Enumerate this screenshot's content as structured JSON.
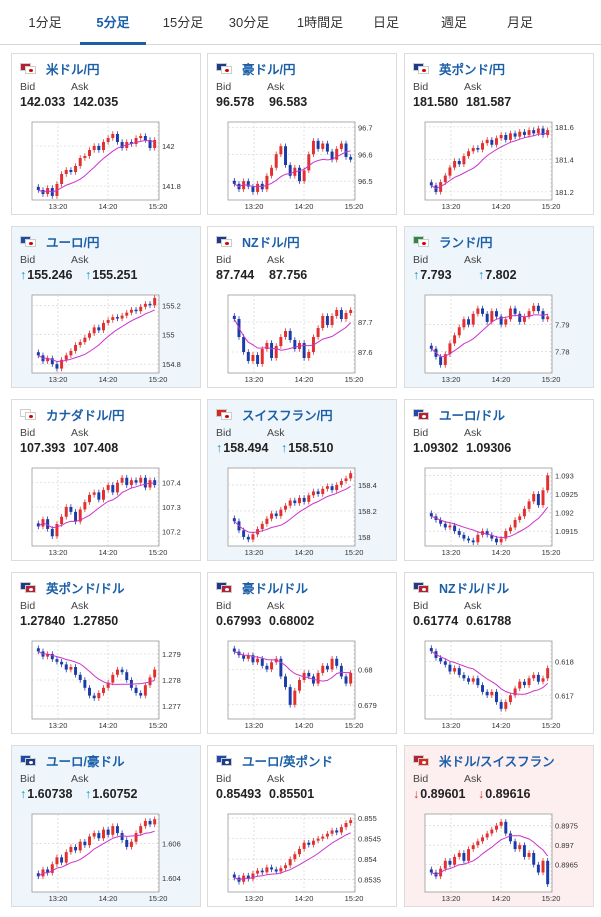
{
  "tabs": [
    {
      "label": "1分足",
      "active": false
    },
    {
      "label": "5分足",
      "active": true
    },
    {
      "label": "15分足",
      "active": false
    },
    {
      "label": "30分足",
      "active": false
    },
    {
      "label": "1時間足",
      "active": false
    },
    {
      "label": "日足",
      "active": false
    },
    {
      "label": "週足",
      "active": false
    },
    {
      "label": "月足",
      "active": false
    }
  ],
  "colors": {
    "accent": "#1a5fa8",
    "up_candle": "#e03030",
    "down_candle": "#1a3ca8",
    "ma_line": "#cc33cc",
    "arrow_up": "#1a8fd0",
    "arrow_down": "#e03030"
  },
  "labels": {
    "bid": "Bid",
    "ask": "Ask"
  },
  "pairs": [
    {
      "name": "米ドル/円",
      "flags": [
        "us",
        "jp"
      ],
      "state": "normal",
      "bid": "142.033",
      "ask": "142.035",
      "bid_dir": "",
      "ask_dir": "",
      "yticks": [
        "142",
        "141.8"
      ]
    },
    {
      "name": "豪ドル/円",
      "flags": [
        "au",
        "jp"
      ],
      "state": "normal",
      "bid": "96.578",
      "ask": "96.583",
      "bid_dir": "",
      "ask_dir": "",
      "yticks": [
        "96.7",
        "96.6",
        "96.5"
      ]
    },
    {
      "name": "英ポンド/円",
      "flags": [
        "gb",
        "jp"
      ],
      "state": "normal",
      "bid": "181.580",
      "ask": "181.587",
      "bid_dir": "",
      "ask_dir": "",
      "yticks": [
        "181.6",
        "181.4",
        "181.2"
      ]
    },
    {
      "name": "ユーロ/円",
      "flags": [
        "eu",
        "jp"
      ],
      "state": "up",
      "bid": "155.246",
      "ask": "155.251",
      "bid_dir": "↑",
      "ask_dir": "↑",
      "yticks": [
        "155.2",
        "155",
        "154.8"
      ]
    },
    {
      "name": "NZドル/円",
      "flags": [
        "nz",
        "jp"
      ],
      "state": "normal",
      "bid": "87.744",
      "ask": "87.756",
      "bid_dir": "",
      "ask_dir": "",
      "yticks": [
        "87.7",
        "87.6"
      ]
    },
    {
      "name": "ランド/円",
      "flags": [
        "za",
        "jp"
      ],
      "state": "up",
      "bid": "7.793",
      "ask": "7.802",
      "bid_dir": "↑",
      "ask_dir": "↑",
      "yticks": [
        "7.79",
        "7.78"
      ]
    },
    {
      "name": "カナダドル/円",
      "flags": [
        "ca",
        "jp"
      ],
      "state": "normal",
      "bid": "107.393",
      "ask": "107.408",
      "bid_dir": "",
      "ask_dir": "",
      "yticks": [
        "107.4",
        "107.3",
        "107.2"
      ]
    },
    {
      "name": "スイスフラン/円",
      "flags": [
        "ch",
        "jp"
      ],
      "state": "up",
      "bid": "158.494",
      "ask": "158.510",
      "bid_dir": "↑",
      "ask_dir": "↑",
      "yticks": [
        "158.4",
        "158.2",
        "158"
      ]
    },
    {
      "name": "ユーロ/ドル",
      "flags": [
        "eu",
        "us"
      ],
      "state": "normal",
      "bid": "1.09302",
      "ask": "1.09306",
      "bid_dir": "",
      "ask_dir": "",
      "yticks": [
        "1.093",
        "1.0925",
        "1.092",
        "1.0915"
      ]
    },
    {
      "name": "英ポンド/ドル",
      "flags": [
        "gb",
        "us"
      ],
      "state": "normal",
      "bid": "1.27840",
      "ask": "1.27850",
      "bid_dir": "",
      "ask_dir": "",
      "yticks": [
        "1.279",
        "1.278",
        "1.277"
      ]
    },
    {
      "name": "豪ドル/ドル",
      "flags": [
        "au",
        "us"
      ],
      "state": "normal",
      "bid": "0.67993",
      "ask": "0.68002",
      "bid_dir": "",
      "ask_dir": "",
      "yticks": [
        "0.68",
        "0.679"
      ]
    },
    {
      "name": "NZドル/ドル",
      "flags": [
        "nz",
        "us"
      ],
      "state": "normal",
      "bid": "0.61774",
      "ask": "0.61788",
      "bid_dir": "",
      "ask_dir": "",
      "yticks": [
        "0.618",
        "0.617"
      ]
    },
    {
      "name": "ユーロ/豪ドル",
      "flags": [
        "eu",
        "au"
      ],
      "state": "up",
      "bid": "1.60738",
      "ask": "1.60752",
      "bid_dir": "↑",
      "ask_dir": "↑",
      "yticks": [
        "1.606",
        "1.604"
      ]
    },
    {
      "name": "ユーロ/英ポンド",
      "flags": [
        "eu",
        "gb"
      ],
      "state": "normal",
      "bid": "0.85493",
      "ask": "0.85501",
      "bid_dir": "",
      "ask_dir": "",
      "yticks": [
        "0.855",
        "0.8545",
        "0.854",
        "0.8535"
      ]
    },
    {
      "name": "米ドル/スイスフラン",
      "flags": [
        "us",
        "ch"
      ],
      "state": "down",
      "bid": "0.89601",
      "ask": "0.89616",
      "bid_dir": "↓",
      "ask_dir": "↓",
      "yticks": [
        "0.8975",
        "0.897",
        "0.8965"
      ]
    }
  ],
  "chart_data": [
    {
      "type": "candlestick",
      "pair": "米ドル/円",
      "x_ticks": [
        "13:20",
        "14:20",
        "15:20"
      ],
      "y_ticks": [
        142,
        141.8
      ],
      "ylim": [
        141.73,
        142.12
      ],
      "close": [
        141.78,
        141.76,
        141.79,
        141.75,
        141.81,
        141.86,
        141.88,
        141.87,
        141.9,
        141.94,
        141.95,
        141.98,
        142.0,
        141.98,
        142.02,
        142.04,
        142.06,
        142.02,
        141.99,
        142.02,
        142.01,
        142.04,
        142.05,
        142.03,
        141.99,
        142.03
      ]
    },
    {
      "type": "candlestick",
      "pair": "豪ドル/円",
      "x_ticks": [
        "13:20",
        "14:20",
        "15:20"
      ],
      "y_ticks": [
        96.7,
        96.6,
        96.5
      ],
      "ylim": [
        96.43,
        96.72
      ],
      "close": [
        96.49,
        96.47,
        96.5,
        96.48,
        96.46,
        96.49,
        96.47,
        96.52,
        96.55,
        96.6,
        96.63,
        96.56,
        96.52,
        96.55,
        96.5,
        96.54,
        96.6,
        96.65,
        96.62,
        96.64,
        96.61,
        96.58,
        96.62,
        96.64,
        96.59,
        96.58
      ]
    },
    {
      "type": "candlestick",
      "pair": "英ポンド/円",
      "x_ticks": [
        "13:20",
        "14:20",
        "15:20"
      ],
      "y_ticks": [
        181.6,
        181.4,
        181.2
      ],
      "ylim": [
        181.15,
        181.63
      ],
      "close": [
        181.24,
        181.2,
        181.26,
        181.3,
        181.35,
        181.39,
        181.37,
        181.42,
        181.45,
        181.47,
        181.46,
        181.5,
        181.52,
        181.49,
        181.53,
        181.55,
        181.52,
        181.56,
        181.54,
        181.57,
        181.55,
        181.58,
        181.56,
        181.59,
        181.55,
        181.58
      ]
    },
    {
      "type": "candlestick",
      "pair": "ユーロ/円",
      "x_ticks": [
        "13:20",
        "14:20",
        "15:20"
      ],
      "y_ticks": [
        155.2,
        155,
        154.8
      ],
      "ylim": [
        154.74,
        155.27
      ],
      "close": [
        154.86,
        154.82,
        154.84,
        154.8,
        154.77,
        154.83,
        154.86,
        154.89,
        154.93,
        154.95,
        154.98,
        155.01,
        155.05,
        155.03,
        155.08,
        155.1,
        155.12,
        155.11,
        155.13,
        155.15,
        155.17,
        155.16,
        155.19,
        155.21,
        155.2,
        155.25
      ]
    },
    {
      "type": "candlestick",
      "pair": "NZドル/円",
      "x_ticks": [
        "13:20",
        "14:20",
        "15:20"
      ],
      "y_ticks": [
        87.7,
        87.6
      ],
      "ylim": [
        87.53,
        87.79
      ],
      "close": [
        87.71,
        87.65,
        87.6,
        87.57,
        87.59,
        87.56,
        87.61,
        87.63,
        87.58,
        87.62,
        87.65,
        87.67,
        87.64,
        87.61,
        87.63,
        87.58,
        87.6,
        87.65,
        87.68,
        87.72,
        87.69,
        87.72,
        87.74,
        87.71,
        87.73,
        87.74
      ]
    },
    {
      "type": "candlestick",
      "pair": "ランド/円",
      "x_ticks": [
        "13:20",
        "14:20",
        "15:20"
      ],
      "y_ticks": [
        7.79,
        7.78
      ],
      "ylim": [
        7.772,
        7.801
      ],
      "close": [
        7.781,
        7.778,
        7.775,
        7.779,
        7.783,
        7.786,
        7.789,
        7.792,
        7.79,
        7.794,
        7.796,
        7.794,
        7.791,
        7.795,
        7.793,
        7.79,
        7.792,
        7.796,
        7.794,
        7.791,
        7.793,
        7.795,
        7.797,
        7.795,
        7.792,
        7.793
      ]
    },
    {
      "type": "candlestick",
      "pair": "カナダドル/円",
      "x_ticks": [
        "13:20",
        "14:20",
        "15:20"
      ],
      "y_ticks": [
        107.4,
        107.3,
        107.2
      ],
      "ylim": [
        107.14,
        107.46
      ],
      "close": [
        107.22,
        107.25,
        107.21,
        107.18,
        107.23,
        107.26,
        107.3,
        107.28,
        107.24,
        107.29,
        107.32,
        107.35,
        107.36,
        107.33,
        107.37,
        107.39,
        107.36,
        107.4,
        107.42,
        107.39,
        107.41,
        107.4,
        107.42,
        107.38,
        107.41,
        107.39
      ]
    },
    {
      "type": "candlestick",
      "pair": "スイスフラン/円",
      "x_ticks": [
        "13:20",
        "14:20",
        "15:20"
      ],
      "y_ticks": [
        158.4,
        158.2,
        158
      ],
      "ylim": [
        157.93,
        158.53
      ],
      "close": [
        158.12,
        158.05,
        158.0,
        157.98,
        158.02,
        158.06,
        158.1,
        158.14,
        158.18,
        158.16,
        158.21,
        158.24,
        158.28,
        158.26,
        158.3,
        158.27,
        158.32,
        158.35,
        158.33,
        158.37,
        158.39,
        158.36,
        158.4,
        158.43,
        158.45,
        158.49
      ]
    },
    {
      "type": "candlestick",
      "pair": "ユーロ/ドル",
      "x_ticks": [
        "13:20",
        "14:20",
        "15:20"
      ],
      "y_ticks": [
        1.093,
        1.0925,
        1.092,
        1.0915
      ],
      "ylim": [
        1.0911,
        1.0932
      ],
      "close": [
        1.0919,
        1.0918,
        1.0917,
        1.0916,
        1.09165,
        1.0915,
        1.0914,
        1.0913,
        1.09125,
        1.0912,
        1.0914,
        1.0915,
        1.0914,
        1.0913,
        1.0912,
        1.0913,
        1.0915,
        1.0916,
        1.0918,
        1.0919,
        1.0921,
        1.0923,
        1.0925,
        1.0922,
        1.0926,
        1.093
      ]
    },
    {
      "type": "candlestick",
      "pair": "英ポンド/ドル",
      "x_ticks": [
        "13:20",
        "14:20",
        "15:20"
      ],
      "y_ticks": [
        1.279,
        1.278,
        1.277
      ],
      "ylim": [
        1.2765,
        1.2795
      ],
      "close": [
        1.2791,
        1.2789,
        1.279,
        1.2788,
        1.2787,
        1.2786,
        1.2784,
        1.2785,
        1.2782,
        1.278,
        1.2777,
        1.2774,
        1.2773,
        1.2775,
        1.2777,
        1.2779,
        1.2782,
        1.2784,
        1.2783,
        1.278,
        1.2777,
        1.2775,
        1.2774,
        1.2778,
        1.2781,
        1.2784
      ]
    },
    {
      "type": "candlestick",
      "pair": "豪ドル/ドル",
      "x_ticks": [
        "13:20",
        "14:20",
        "15:20"
      ],
      "y_ticks": [
        0.68,
        0.679
      ],
      "ylim": [
        0.6786,
        0.6808
      ],
      "close": [
        0.6805,
        0.6804,
        0.6803,
        0.6804,
        0.6802,
        0.6803,
        0.6801,
        0.68,
        0.6802,
        0.6803,
        0.6798,
        0.6795,
        0.679,
        0.6794,
        0.6797,
        0.6799,
        0.6798,
        0.6796,
        0.6799,
        0.6801,
        0.68,
        0.6803,
        0.6801,
        0.6798,
        0.6796,
        0.6799
      ]
    },
    {
      "type": "candlestick",
      "pair": "NZドル/ドル",
      "x_ticks": [
        "13:20",
        "14:20",
        "15:20"
      ],
      "y_ticks": [
        0.618,
        0.617
      ],
      "ylim": [
        0.6163,
        0.6186
      ],
      "close": [
        0.6183,
        0.6181,
        0.618,
        0.6179,
        0.6177,
        0.6178,
        0.6176,
        0.6175,
        0.6174,
        0.6175,
        0.6173,
        0.6171,
        0.617,
        0.6171,
        0.6168,
        0.6166,
        0.6168,
        0.617,
        0.6172,
        0.6174,
        0.6173,
        0.6175,
        0.6176,
        0.6174,
        0.6175,
        0.6178
      ]
    },
    {
      "type": "candlestick",
      "pair": "ユーロ/豪ドル",
      "x_ticks": [
        "13:20",
        "14:20",
        "15:20"
      ],
      "y_ticks": [
        1.606,
        1.604
      ],
      "ylim": [
        1.6032,
        1.6077
      ],
      "close": [
        1.6041,
        1.6045,
        1.6043,
        1.6048,
        1.6052,
        1.6049,
        1.6055,
        1.6058,
        1.6056,
        1.6061,
        1.6059,
        1.6064,
        1.6066,
        1.6063,
        1.6068,
        1.6065,
        1.607,
        1.6066,
        1.6062,
        1.6058,
        1.6061,
        1.6066,
        1.607,
        1.6073,
        1.6071,
        1.6074
      ]
    },
    {
      "type": "candlestick",
      "pair": "ユーロ/英ポンド",
      "x_ticks": [
        "13:20",
        "14:20",
        "15:20"
      ],
      "y_ticks": [
        0.855,
        0.8545,
        0.854,
        0.8535
      ],
      "ylim": [
        0.8532,
        0.8551
      ],
      "close": [
        0.85355,
        0.85345,
        0.8536,
        0.85352,
        0.85365,
        0.85372,
        0.85368,
        0.8538,
        0.85375,
        0.8537,
        0.85378,
        0.85385,
        0.854,
        0.85412,
        0.85425,
        0.8544,
        0.85435,
        0.85445,
        0.8545,
        0.85455,
        0.85462,
        0.8547,
        0.85465,
        0.85478,
        0.85488,
        0.85495
      ]
    },
    {
      "type": "candlestick",
      "pair": "米ドル/スイスフラン",
      "x_ticks": [
        "13:20",
        "14:20",
        "15:20"
      ],
      "y_ticks": [
        0.8975,
        0.897,
        0.8965
      ],
      "ylim": [
        0.8958,
        0.8978
      ],
      "close": [
        0.8963,
        0.8962,
        0.8964,
        0.8966,
        0.8965,
        0.8967,
        0.8968,
        0.8966,
        0.8969,
        0.897,
        0.8971,
        0.8972,
        0.8973,
        0.8974,
        0.8975,
        0.8976,
        0.8973,
        0.8971,
        0.8969,
        0.897,
        0.8967,
        0.8968,
        0.8965,
        0.8963,
        0.8966,
        0.896
      ]
    }
  ]
}
